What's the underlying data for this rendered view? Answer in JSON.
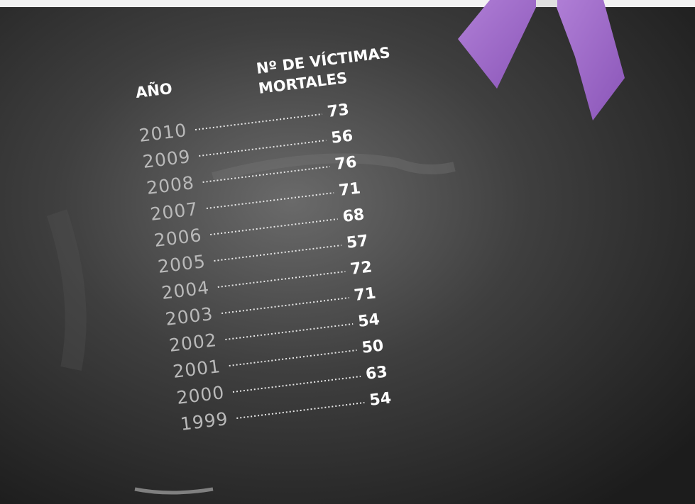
{
  "header": {
    "year_label": "AÑO",
    "value_label_lines": [
      "Nº DE VÍCTIMAS",
      "MORTALES"
    ]
  },
  "table": {
    "rows": [
      {
        "year": 2010,
        "value": 73
      },
      {
        "year": 2009,
        "value": 56
      },
      {
        "year": 2008,
        "value": 76
      },
      {
        "year": 2007,
        "value": 71
      },
      {
        "year": 2006,
        "value": 68
      },
      {
        "year": 2005,
        "value": 57
      },
      {
        "year": 2004,
        "value": 72
      },
      {
        "year": 2003,
        "value": 71
      },
      {
        "year": 2002,
        "value": 54
      },
      {
        "year": 2001,
        "value": 50
      },
      {
        "year": 2000,
        "value": 63
      },
      {
        "year": 1999,
        "value": 54
      }
    ]
  }
}
